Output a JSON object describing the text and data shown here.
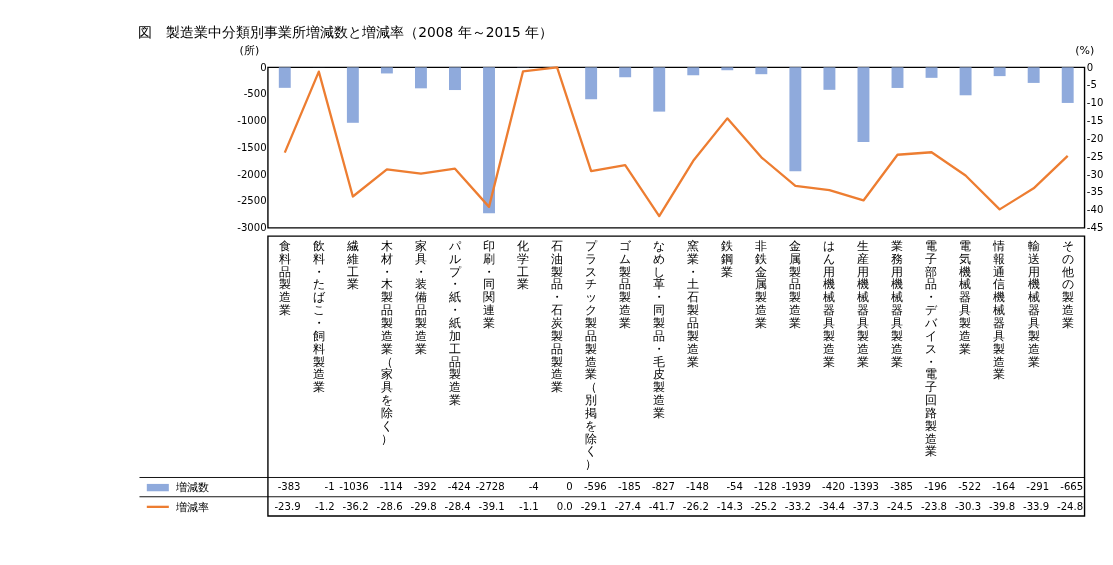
{
  "chart_data": {
    "type": "bar",
    "title": "図　製造業中分類別事業所増減数と増減率（2008 年～2015 年）",
    "ylabel": "(所)",
    "y2label": "(%)",
    "categories": [
      "食料品製造業",
      "飲料・たばこ・飼料製造業",
      "繊維工業",
      "木材・木製品製造業（家具を除く）",
      "家具・装備品製造業",
      "パルプ・紙・紙加工品製造業",
      "印刷・同関連業",
      "化学工業",
      "石油製品・石炭製品製造業",
      "プラスチック製品製造業（別掲を除く）",
      "ゴム製品製造業",
      "なめし革・同製品・毛皮製造業",
      "窯業・土石製品製造業",
      "鉄鋼業",
      "非鉄金属製造業",
      "金属製品製造業",
      "はん用機械器具製造業",
      "生産用機械器具製造業",
      "業務用機械器具製造業",
      "電子部品・デバイス・電子回路製造業",
      "電気機械器具製造業",
      "情報通信機械器具製造業",
      "輸送用機械器具製造業",
      "その他の製造業"
    ],
    "series": [
      {
        "name": "増減数",
        "color": "#8faadc",
        "values": [
          -383,
          -1,
          -1036,
          -114,
          -392,
          -424,
          -2728,
          -4,
          0,
          -596,
          -185,
          -827,
          -148,
          -54,
          -128,
          -1939,
          -420,
          -1393,
          -385,
          -196,
          -522,
          -164,
          -291,
          -665
        ],
        "value_labels": [
          "-383",
          "-1",
          "-1036",
          "-114",
          "-392",
          "-424",
          "-2728",
          "-4",
          "0",
          "-596",
          "-185",
          "-827",
          "-148",
          "-54",
          "-128",
          "-1939",
          "-420",
          "-1393",
          "-385",
          "-196",
          "-522",
          "-164",
          "-291",
          "-665"
        ]
      },
      {
        "name": "増減率",
        "type": "line",
        "axis": "y2",
        "color": "#ed7d31",
        "values": [
          -23.9,
          -1.2,
          -36.2,
          -28.6,
          -29.8,
          -28.4,
          -39.1,
          -1.1,
          0.0,
          -29.1,
          -27.4,
          -41.7,
          -26.2,
          -14.3,
          -25.2,
          -33.2,
          -34.4,
          -37.3,
          -24.5,
          -23.8,
          -30.3,
          -39.8,
          -33.9,
          -24.8
        ],
        "value_labels": [
          "-23.9",
          "-1.2",
          "-36.2",
          "-28.6",
          "-29.8",
          "-28.4",
          "-39.1",
          "-1.1",
          "0.0",
          "-29.1",
          "-27.4",
          "-41.7",
          "-26.2",
          "-14.3",
          "-25.2",
          "-33.2",
          "-34.4",
          "-37.3",
          "-24.5",
          "-23.8",
          "-30.3",
          "-39.8",
          "-33.9",
          "-24.8"
        ]
      }
    ],
    "ylim": [
      -3000,
      0
    ],
    "yticks": [
      -3000,
      -2500,
      -2000,
      -1500,
      -1000,
      -500,
      0
    ],
    "y2lim": [
      -45,
      0
    ],
    "y2ticks": [
      -45,
      -40,
      -35,
      -30,
      -25,
      -20,
      -15,
      -10,
      -5,
      0
    ],
    "grid": false,
    "legend": "bottom left",
    "marker": "none",
    "line_style": "solid"
  }
}
